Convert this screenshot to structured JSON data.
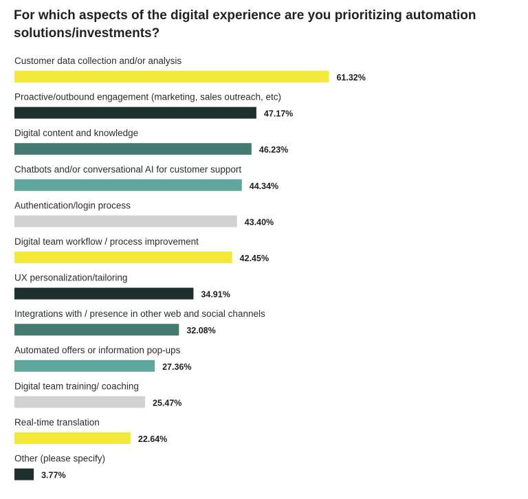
{
  "chart_data": {
    "type": "bar",
    "orientation": "horizontal",
    "title": "For which aspects of the digital experience are you prioritizing automation solutions/investments?",
    "xlabel": "",
    "ylabel": "",
    "xlim": [
      0,
      100
    ],
    "categories": [
      "Customer data collection and/or analysis",
      "Proactive/outbound engagement (marketing, sales outreach, etc)",
      "Digital content and knowledge",
      "Chatbots and/or conversational AI for customer support",
      "Authentication/login process",
      "Digital team workflow / process improvement",
      "UX personalization/tailoring",
      "Integrations with / presence in other web and social channels",
      "Automated offers or information pop-ups",
      "Digital team training/ coaching",
      "Real-time translation",
      "Other (please specify)"
    ],
    "values": [
      61.32,
      47.17,
      46.23,
      44.34,
      43.4,
      42.45,
      34.91,
      32.08,
      27.36,
      25.47,
      22.64,
      3.77
    ],
    "value_labels": [
      "61.32%",
      "47.17%",
      "46.23%",
      "44.34%",
      "43.40%",
      "42.45%",
      "34.91%",
      "32.08%",
      "27.36%",
      "25.47%",
      "22.64%",
      "3.77%"
    ],
    "colors": [
      "#f2e93a",
      "#1e302e",
      "#457a72",
      "#5fa79d",
      "#d2d2d2",
      "#f2e93a",
      "#1e302e",
      "#457a72",
      "#5fa79d",
      "#d2d2d2",
      "#f2e93a",
      "#1e302e"
    ],
    "grid": false,
    "legend": "none"
  }
}
